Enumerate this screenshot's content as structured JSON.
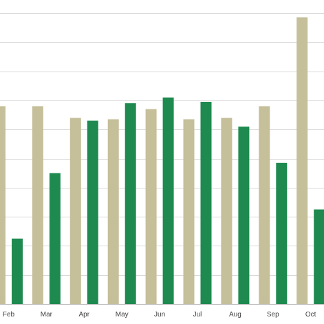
{
  "chart_data": {
    "type": "bar",
    "categories": [
      "Feb",
      "Mar",
      "Apr",
      "May",
      "Jun",
      "Jul",
      "Aug",
      "Sep",
      "Oct"
    ],
    "series": [
      {
        "values": [
          68,
          68,
          64,
          63.5,
          67,
          63.5,
          64,
          68,
          98.5
        ]
      },
      {
        "values": [
          22.5,
          45,
          63,
          69,
          71,
          69.5,
          61,
          48.5,
          32.5
        ]
      }
    ],
    "ylim": [
      0,
      100
    ],
    "grid": true,
    "legend": "none",
    "colors": [
      "#c5bf9a",
      "#1e8a4f"
    ],
    "gridline_color": "#d9d9d9",
    "axis_color": "#bfbfbf"
  }
}
